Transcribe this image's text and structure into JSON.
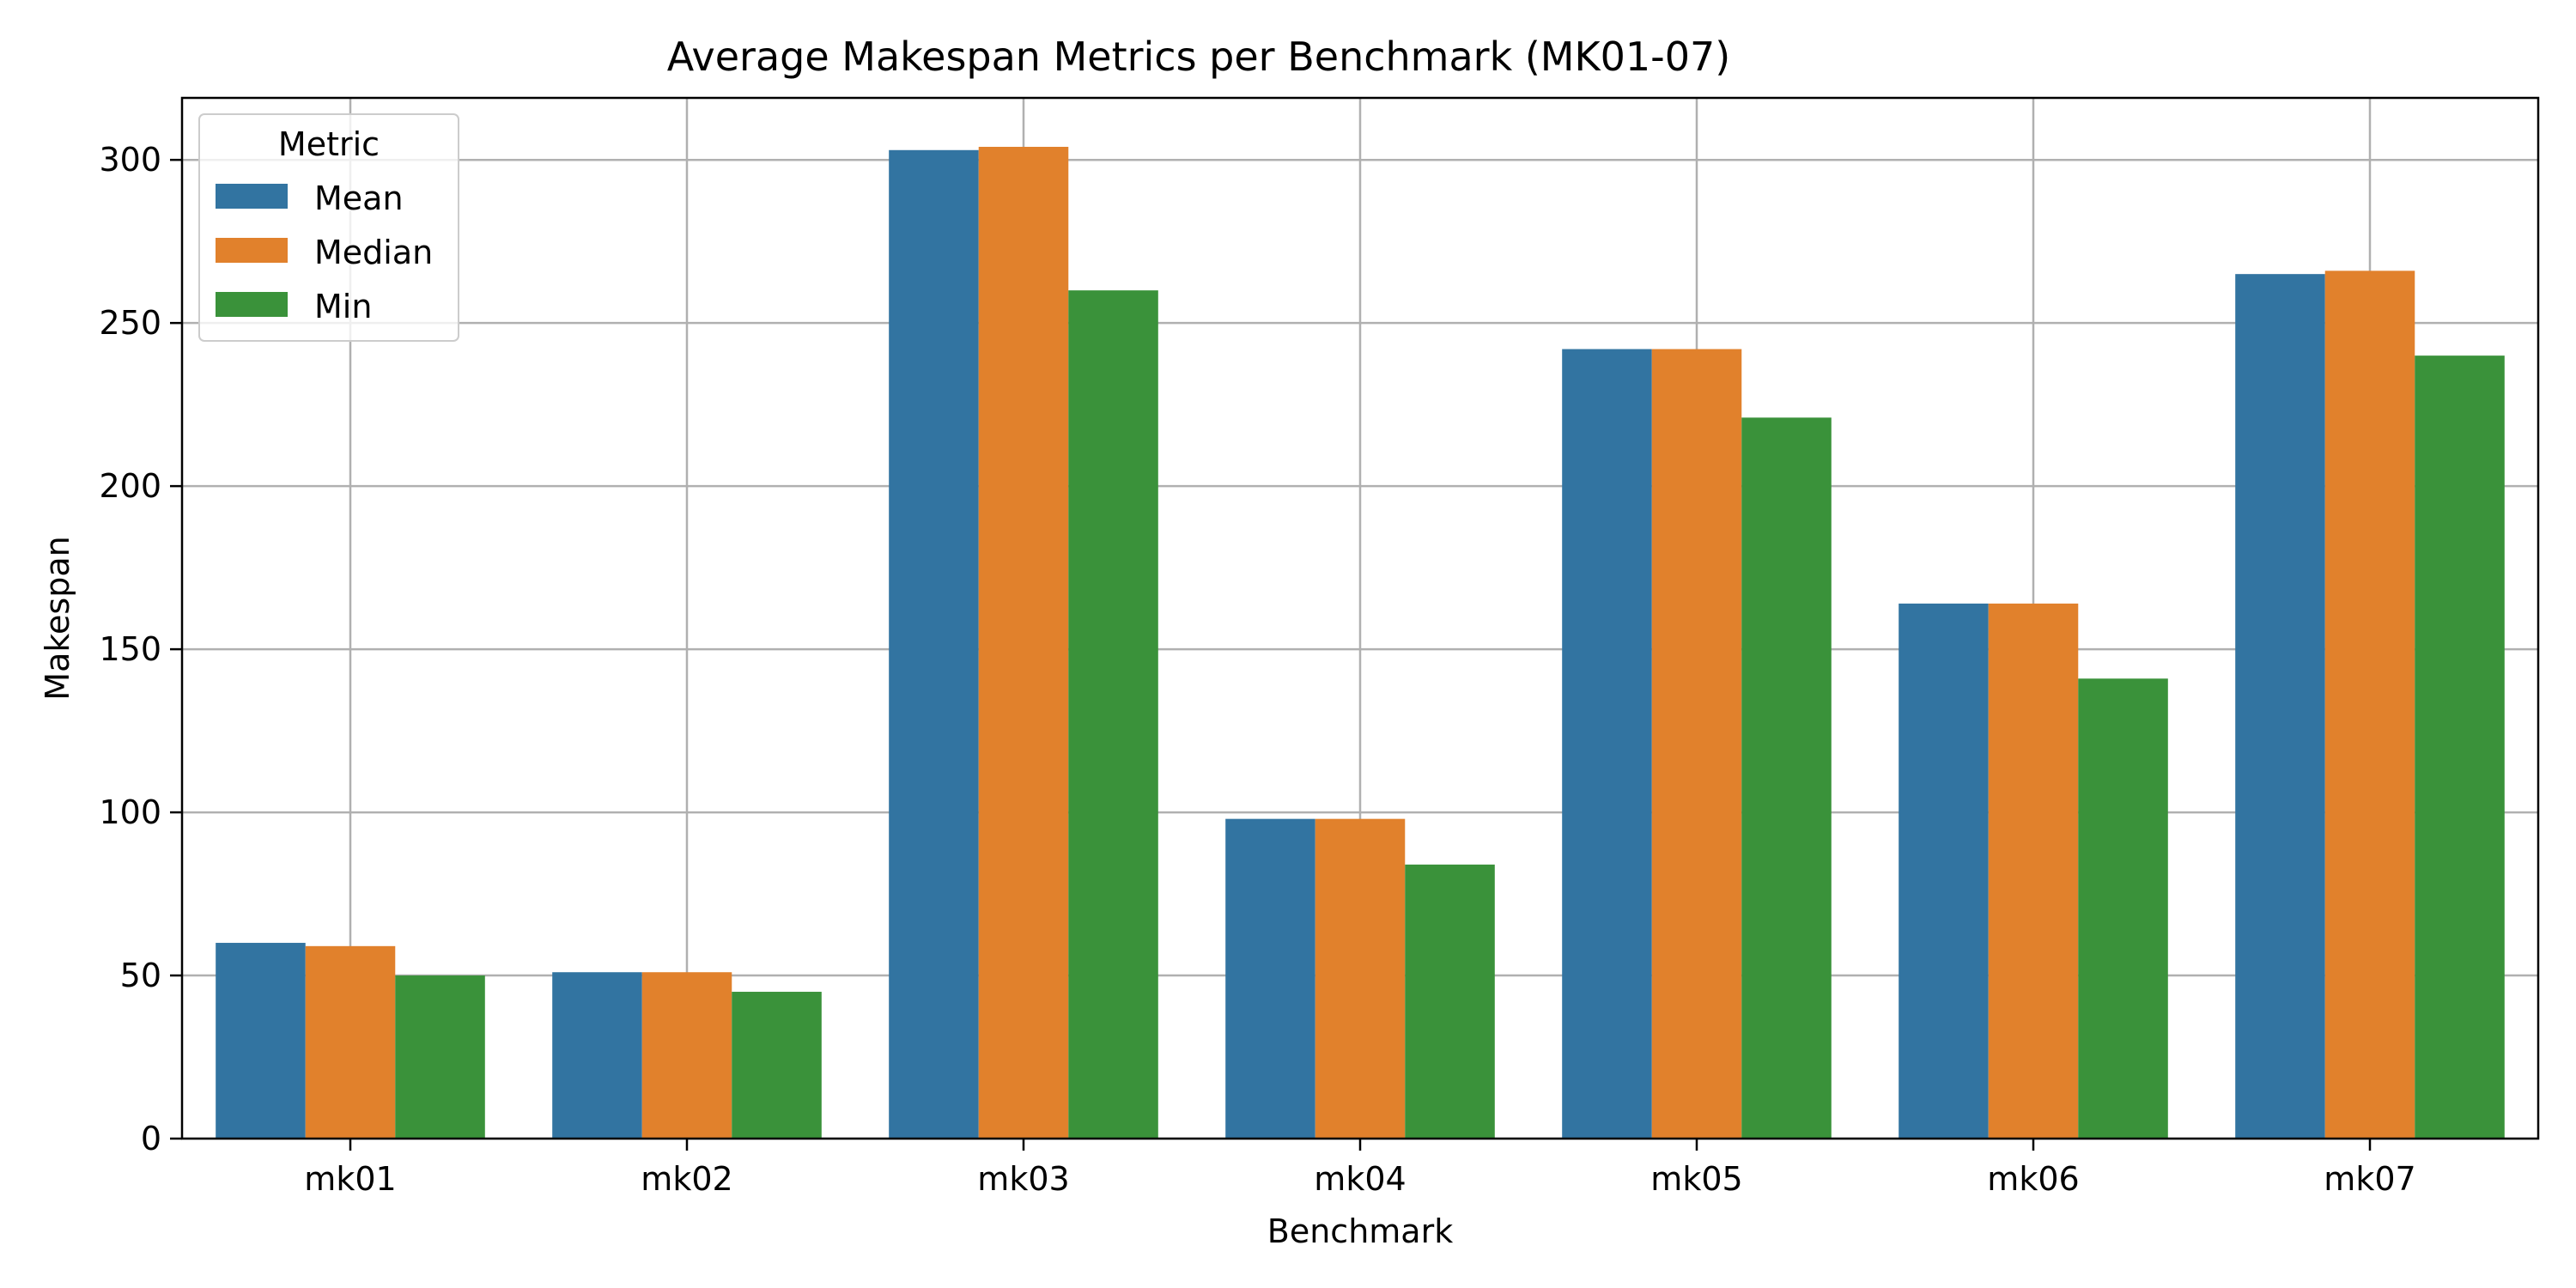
{
  "chart_data": {
    "type": "bar",
    "title": "Average Makespan Metrics per Benchmark (MK01-07)",
    "xlabel": "Benchmark",
    "ylabel": "Makespan",
    "categories": [
      "mk01",
      "mk02",
      "mk03",
      "mk04",
      "mk05",
      "mk06",
      "mk07"
    ],
    "series": [
      {
        "name": "Mean",
        "color": "#3274a1",
        "values": [
          60,
          51,
          303,
          98,
          242,
          164,
          265
        ]
      },
      {
        "name": "Median",
        "color": "#e1812c",
        "values": [
          59,
          51,
          304,
          98,
          242,
          164,
          266
        ]
      },
      {
        "name": "Min",
        "color": "#3a923a",
        "values": [
          50,
          45,
          260,
          84,
          221,
          141,
          240
        ]
      }
    ],
    "ylim": [
      0,
      319
    ],
    "yticks": [
      0,
      50,
      100,
      150,
      200,
      250,
      300
    ],
    "grid": true,
    "legend": {
      "title": "Metric",
      "placement": "top-left"
    }
  }
}
